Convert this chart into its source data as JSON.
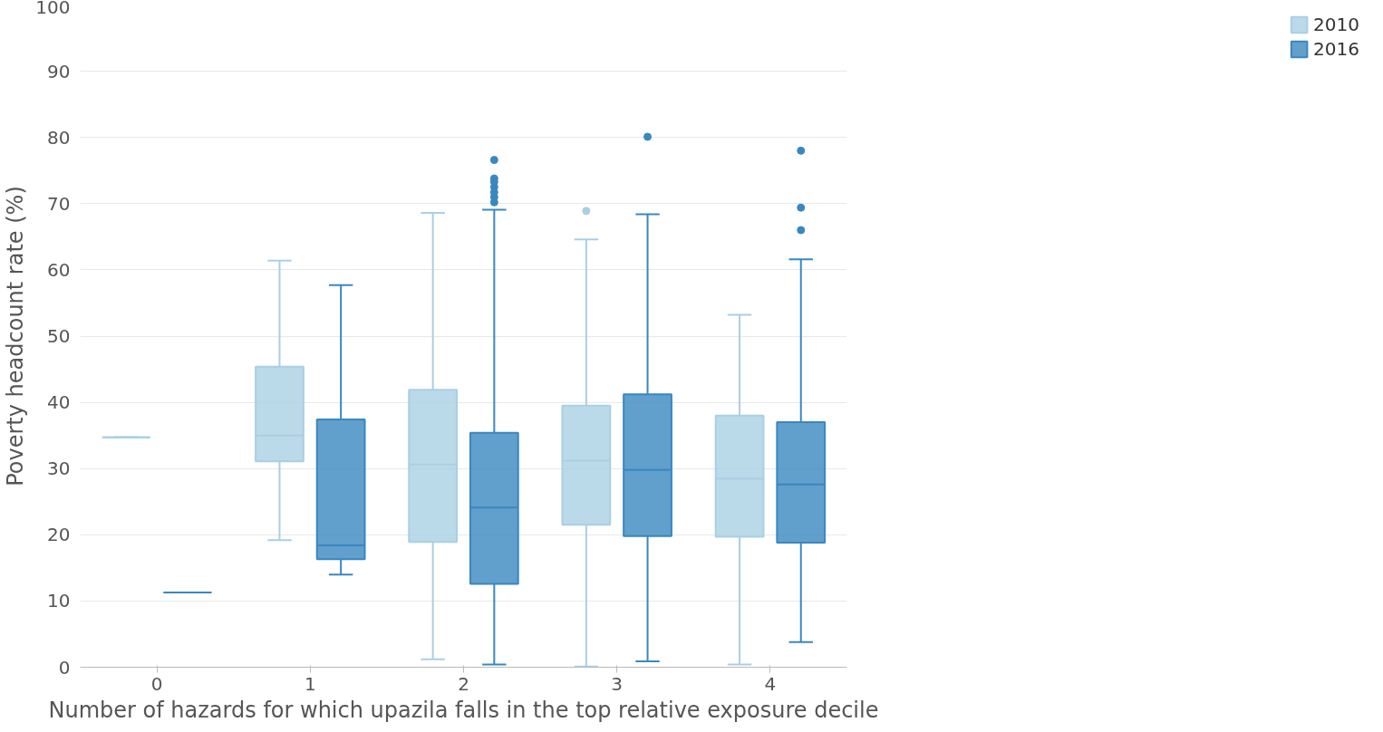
{
  "chart_data": {
    "type": "box",
    "xlabel": "Number of hazards for which upazila falls in the top relative exposure decile",
    "ylabel": "Poverty headcount rate (%)",
    "categories": [
      "0",
      "1",
      "2",
      "3",
      "4"
    ],
    "ylim": [
      0,
      100
    ],
    "yticks": [
      0,
      10,
      20,
      30,
      40,
      50,
      60,
      70,
      80,
      90,
      100
    ],
    "grid": "y",
    "legend": "right",
    "series": [
      {
        "name": "2010",
        "color": "#a9cfe3",
        "boxes": [
          {
            "low": 34.7,
            "q1": 34.7,
            "median": 34.7,
            "q3": 34.7,
            "high": 34.7
          },
          {
            "low": 19.2,
            "q1": 31.1,
            "median": 35.0,
            "q3": 45.4,
            "high": 61.4
          },
          {
            "low": 1.2,
            "q1": 18.9,
            "median": 30.6,
            "q3": 41.9,
            "high": 68.6
          },
          {
            "low": 0.1,
            "q1": 21.5,
            "median": 31.2,
            "q3": 39.5,
            "high": 64.6,
            "outliers": [
              68.9
            ]
          },
          {
            "low": 0.4,
            "q1": 19.7,
            "median": 28.5,
            "q3": 38.0,
            "high": 53.2
          }
        ]
      },
      {
        "name": "2016",
        "color": "#3a87c0",
        "boxes": [
          {
            "low": 11.3,
            "q1": 11.3,
            "median": 11.3,
            "q3": 11.3,
            "high": 11.3
          },
          {
            "low": 14.0,
            "q1": 16.3,
            "median": 18.4,
            "q3": 37.4,
            "high": 57.7
          },
          {
            "low": 0.4,
            "q1": 12.6,
            "median": 24.1,
            "q3": 35.4,
            "high": 69.1,
            "outliers": [
              76.6,
              73.8,
              73.3,
              72.5,
              71.7,
              71.0,
              70.2
            ]
          },
          {
            "low": 0.9,
            "q1": 19.8,
            "median": 29.8,
            "q3": 41.2,
            "high": 68.4,
            "outliers": [
              80.1
            ]
          },
          {
            "low": 3.8,
            "q1": 18.8,
            "median": 27.6,
            "q3": 37.0,
            "high": 61.6,
            "outliers": [
              78.0,
              69.4,
              66.0
            ]
          }
        ]
      }
    ]
  }
}
